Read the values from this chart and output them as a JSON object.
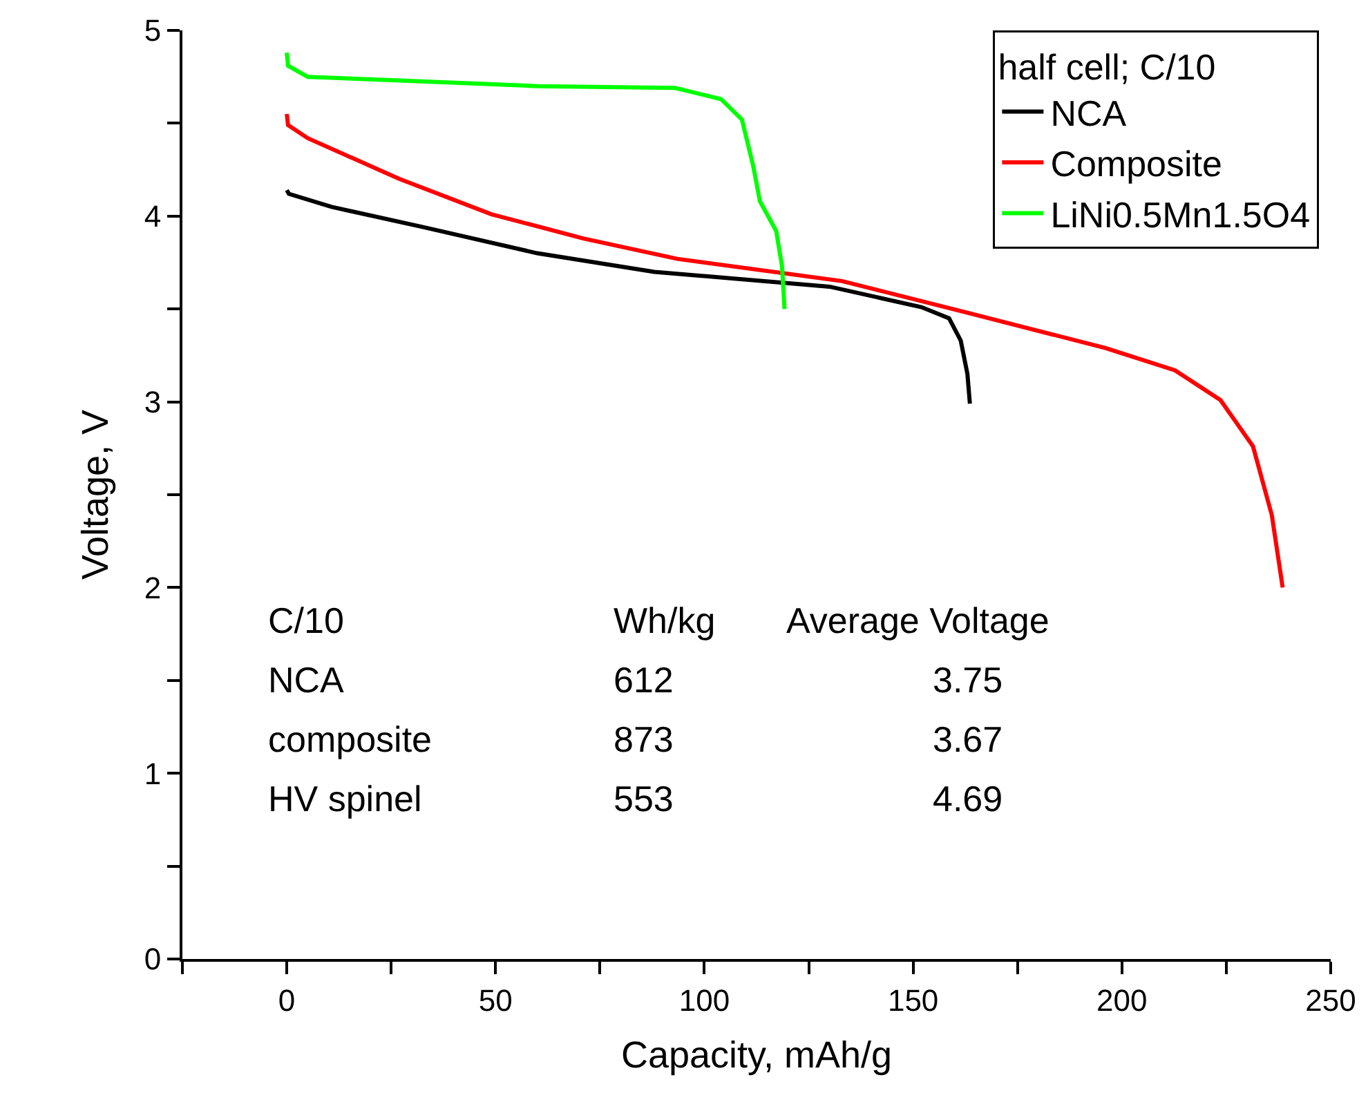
{
  "chart_data": {
    "type": "line",
    "xlabel": "Capacity, mAh/g",
    "ylabel": "Voltage, V",
    "legend_title": "half cell; C/10",
    "legend": "top right",
    "grid": false,
    "marker": "none",
    "line_style": "solid",
    "xlim": [
      -25,
      250
    ],
    "ylim": [
      0,
      5
    ],
    "xticks": [
      {
        "value": -25,
        "label": null
      },
      0,
      {
        "value": 25,
        "label": null
      },
      50,
      {
        "value": 75,
        "label": null
      },
      100,
      {
        "value": 125,
        "label": null
      },
      150,
      {
        "value": 175,
        "label": null
      },
      200,
      {
        "value": 225,
        "label": null
      },
      250
    ],
    "yticks": [
      0,
      {
        "value": 0.5,
        "label": null
      },
      1,
      {
        "value": 1.5,
        "label": null
      },
      2,
      {
        "value": 2.5,
        "label": null
      },
      3,
      {
        "value": 3.5,
        "label": null
      },
      4,
      {
        "value": 4.5,
        "label": null
      },
      5
    ],
    "series": [
      {
        "name": "NCA",
        "color": "#000000",
        "x": [
          0,
          0.5,
          10.7,
          32.8,
          60,
          88,
          130,
          152,
          158.6,
          161.4,
          163,
          163.6
        ],
        "values": [
          4.14,
          4.12,
          4.05,
          3.94,
          3.8,
          3.7,
          3.62,
          3.51,
          3.45,
          3.33,
          3.15,
          2.99
        ]
      },
      {
        "name": "Composite",
        "color": "#ff0000",
        "x": [
          0,
          0.3,
          5,
          27,
          49,
          71,
          93.5,
          133,
          163,
          196,
          212.7,
          223.6,
          231.4,
          235.9,
          238.5
        ],
        "values": [
          4.55,
          4.49,
          4.42,
          4.2,
          4.01,
          3.88,
          3.77,
          3.65,
          3.48,
          3.29,
          3.17,
          3.01,
          2.76,
          2.39,
          2
        ]
      },
      {
        "name": "LiNi0.5Mn1.5O4",
        "color": "#00ff00",
        "x": [
          0,
          0.3,
          5,
          27,
          60,
          93,
          104,
          109,
          111.7,
          113.3,
          117.2,
          118.6,
          119.2
        ],
        "values": [
          4.88,
          4.81,
          4.75,
          4.73,
          4.7,
          4.69,
          4.63,
          4.52,
          4.27,
          4.08,
          3.92,
          3.73,
          3.5
        ]
      }
    ],
    "annotations": [
      "C/10",
      "Wh/kg",
      "Average Voltage",
      "NCA",
      "612",
      "3.75",
      "composite",
      "873",
      "3.67",
      "HV spinel",
      "553",
      "4.69"
    ]
  }
}
